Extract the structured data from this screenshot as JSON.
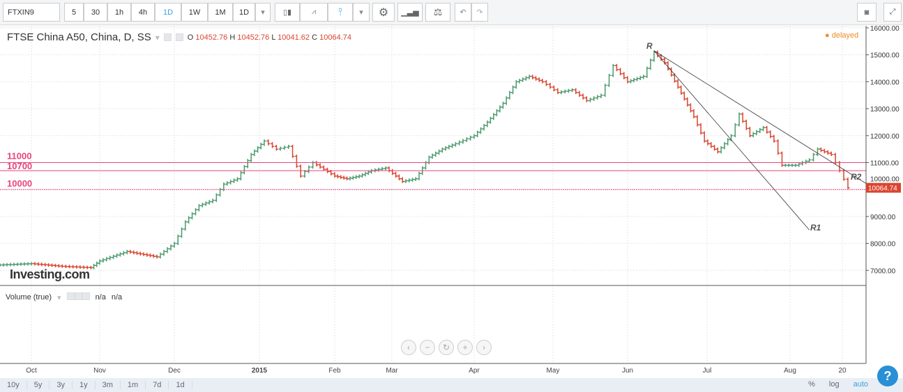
{
  "toolbar": {
    "symbol": "FTXIN9",
    "intervals": [
      "5",
      "30",
      "1h",
      "4h",
      "1D",
      "1W",
      "1M",
      "1D"
    ],
    "active_interval": "1D",
    "icons": [
      "dropdown-icon",
      "candlestick-icon",
      "line-chart-icon",
      "bar-chart-icon",
      "dropdown-icon",
      "gear-icon",
      "indicators-icon",
      "compare-scale-icon",
      "undo-icon",
      "redo-icon"
    ],
    "right_icons": [
      "camera-icon",
      "fullscreen-icon"
    ]
  },
  "legend": {
    "title": "FTSE China A50, China, D, SS",
    "o_label": "O",
    "o": "10452.76",
    "h_label": "H",
    "h": "10452.76",
    "l_label": "L",
    "l": "10041.62",
    "c_label": "C",
    "c": "10064.74",
    "delayed": "delayed"
  },
  "volume": {
    "title": "Volume (true)",
    "v1": "n/a",
    "v2": "n/a"
  },
  "watermark": "Investing.com",
  "range_buttons": [
    "10y",
    "5y",
    "3y",
    "1y",
    "3m",
    "1m",
    "7d",
    "1d"
  ],
  "scale_buttons": [
    "%",
    "log",
    "auto"
  ],
  "colors": {
    "up": "#4c9a6f",
    "down": "#d9452f",
    "level": "#e8457a",
    "last": "#d9452f"
  },
  "chart_data": {
    "type": "ohlc",
    "y_ticks": [
      "16000.00",
      "15000.00",
      "14000.00",
      "13000.00",
      "12000.00",
      "11000.00",
      "10000.00",
      "9000.00",
      "8000.00",
      "7000.00"
    ],
    "ylim": [
      6500,
      16000
    ],
    "x_ticks": [
      "Oct",
      "Nov",
      "Dec",
      "2015",
      "Feb",
      "Mar",
      "Apr",
      "May",
      "Jun",
      "Jul",
      "Aug",
      "20"
    ],
    "last_price": "10064.74",
    "levels": [
      {
        "label": "11000",
        "value": 11000
      },
      {
        "label": "10700",
        "value": 10700
      },
      {
        "label": "10000",
        "value": 10000
      }
    ],
    "trendlines": [
      {
        "label": "R",
        "from": [
          "2015-06-11",
          15150
        ],
        "to": [
          "2015-08-29",
          10190
        ],
        "name": "R2"
      },
      {
        "label": "R1",
        "from": [
          "2015-06-11",
          15150
        ],
        "to": [
          "2015-08-08",
          8500
        ]
      }
    ],
    "trendline_labels": [
      "R",
      "R1",
      "R2"
    ],
    "closes": [
      [
        "2014-09-17",
        7200
      ],
      [
        "2014-10-01",
        7250
      ],
      [
        "2014-10-15",
        7150
      ],
      [
        "2014-10-28",
        7100
      ],
      [
        "2014-11-01",
        7350
      ],
      [
        "2014-11-12",
        7700
      ],
      [
        "2014-11-24",
        7500
      ],
      [
        "2014-12-01",
        8000
      ],
      [
        "2014-12-05",
        8800
      ],
      [
        "2014-12-10",
        9400
      ],
      [
        "2014-12-15",
        9600
      ],
      [
        "2014-12-19",
        10200
      ],
      [
        "2014-12-24",
        10400
      ],
      [
        "2014-12-29",
        11300
      ],
      [
        "2015-01-03",
        11800
      ],
      [
        "2015-01-08",
        11500
      ],
      [
        "2015-01-13",
        11600
      ],
      [
        "2015-01-18",
        10500
      ],
      [
        "2015-01-23",
        11000
      ],
      [
        "2015-02-01",
        10500
      ],
      [
        "2015-02-07",
        10400
      ],
      [
        "2015-02-13",
        10500
      ],
      [
        "2015-02-19",
        10700
      ],
      [
        "2015-02-26",
        10800
      ],
      [
        "2015-03-05",
        10300
      ],
      [
        "2015-03-10",
        10400
      ],
      [
        "2015-03-15",
        11200
      ],
      [
        "2015-03-20",
        11500
      ],
      [
        "2015-03-25",
        11700
      ],
      [
        "2015-04-01",
        12000
      ],
      [
        "2015-04-06",
        12500
      ],
      [
        "2015-04-12",
        13200
      ],
      [
        "2015-04-17",
        14000
      ],
      [
        "2015-04-22",
        14200
      ],
      [
        "2015-04-27",
        14000
      ],
      [
        "2015-05-03",
        13600
      ],
      [
        "2015-05-09",
        13700
      ],
      [
        "2015-05-15",
        13300
      ],
      [
        "2015-05-21",
        13500
      ],
      [
        "2015-05-26",
        14600
      ],
      [
        "2015-06-01",
        14000
      ],
      [
        "2015-06-07",
        14200
      ],
      [
        "2015-06-11",
        15100
      ],
      [
        "2015-06-15",
        14700
      ],
      [
        "2015-06-20",
        13800
      ],
      [
        "2015-06-26",
        12700
      ],
      [
        "2015-06-30",
        11800
      ],
      [
        "2015-07-05",
        11400
      ],
      [
        "2015-07-10",
        12000
      ],
      [
        "2015-07-13",
        12800
      ],
      [
        "2015-07-17",
        12000
      ],
      [
        "2015-07-22",
        12300
      ],
      [
        "2015-07-26",
        11800
      ],
      [
        "2015-07-29",
        10900
      ],
      [
        "2015-08-03",
        10900
      ],
      [
        "2015-08-08",
        11100
      ],
      [
        "2015-08-11",
        11500
      ],
      [
        "2015-08-16",
        11300
      ],
      [
        "2015-08-19",
        10700
      ],
      [
        "2015-08-22",
        10065
      ]
    ]
  }
}
